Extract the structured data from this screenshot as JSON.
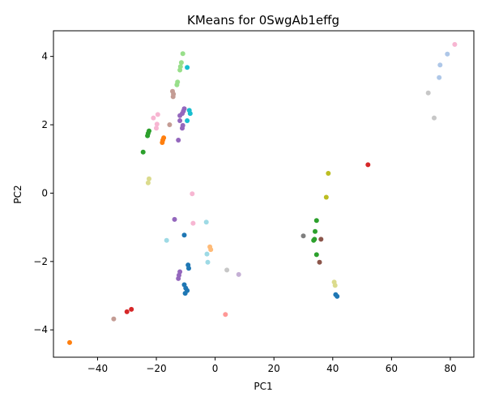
{
  "chart_data": {
    "type": "scatter",
    "title": "KMeans for 0SwgAb1effg",
    "xlabel": "PC1",
    "ylabel": "PC2",
    "xlim": [
      -55,
      88
    ],
    "ylim": [
      -4.8,
      4.75
    ],
    "xticks": [
      -40,
      -20,
      0,
      20,
      40,
      60,
      80
    ],
    "yticks": [
      -4,
      -2,
      0,
      2,
      4
    ],
    "xtick_labels": [
      "−40",
      "−20",
      "0",
      "20",
      "40",
      "60",
      "80"
    ],
    "ytick_labels": [
      "−4",
      "−2",
      "0",
      "2",
      "4"
    ],
    "grid": false,
    "legend": false,
    "points": [
      {
        "x": -11,
        "y": 4.08,
        "c": "#98df8a"
      },
      {
        "x": -11.5,
        "y": 3.82,
        "c": "#98df8a"
      },
      {
        "x": -11.8,
        "y": 3.7,
        "c": "#98df8a"
      },
      {
        "x": -12,
        "y": 3.6,
        "c": "#98df8a"
      },
      {
        "x": -9.5,
        "y": 3.68,
        "c": "#17becf"
      },
      {
        "x": -12.8,
        "y": 3.25,
        "c": "#98df8a"
      },
      {
        "x": -13,
        "y": 3.17,
        "c": "#98df8a"
      },
      {
        "x": -14.5,
        "y": 2.98,
        "c": "#c49c94"
      },
      {
        "x": -14.2,
        "y": 2.9,
        "c": "#c49c94"
      },
      {
        "x": -14.3,
        "y": 2.82,
        "c": "#c49c94"
      },
      {
        "x": -10.5,
        "y": 2.47,
        "c": "#9467bd"
      },
      {
        "x": -10.8,
        "y": 2.4,
        "c": "#9467bd"
      },
      {
        "x": -8.8,
        "y": 2.42,
        "c": "#17becf"
      },
      {
        "x": -8.5,
        "y": 2.33,
        "c": "#17becf"
      },
      {
        "x": -11.2,
        "y": 2.33,
        "c": "#9467bd"
      },
      {
        "x": -12,
        "y": 2.27,
        "c": "#9467bd"
      },
      {
        "x": -19.5,
        "y": 2.3,
        "c": "#f7b6d2"
      },
      {
        "x": -21,
        "y": 2.2,
        "c": "#f7b6d2"
      },
      {
        "x": -9.5,
        "y": 2.12,
        "c": "#17becf"
      },
      {
        "x": -12,
        "y": 2.12,
        "c": "#9467bd"
      },
      {
        "x": -19.8,
        "y": 2.02,
        "c": "#f7b6d2"
      },
      {
        "x": -15.5,
        "y": 2.0,
        "c": "#c49c94"
      },
      {
        "x": -11,
        "y": 1.98,
        "c": "#9467bd"
      },
      {
        "x": -11.2,
        "y": 1.9,
        "c": "#9467bd"
      },
      {
        "x": -20,
        "y": 1.9,
        "c": "#f7b6d2"
      },
      {
        "x": -22.5,
        "y": 1.82,
        "c": "#2ca02c"
      },
      {
        "x": -22.8,
        "y": 1.75,
        "c": "#2ca02c"
      },
      {
        "x": -23,
        "y": 1.68,
        "c": "#2ca02c"
      },
      {
        "x": -17.5,
        "y": 1.62,
        "c": "#ff7f0e"
      },
      {
        "x": -17.8,
        "y": 1.55,
        "c": "#ff7f0e"
      },
      {
        "x": -18,
        "y": 1.48,
        "c": "#ff7f0e"
      },
      {
        "x": -12.5,
        "y": 1.55,
        "c": "#9467bd"
      },
      {
        "x": -24.5,
        "y": 1.2,
        "c": "#2ca02c"
      },
      {
        "x": -22.5,
        "y": 0.42,
        "c": "#dbdb8d"
      },
      {
        "x": -22.8,
        "y": 0.3,
        "c": "#dbdb8d"
      },
      {
        "x": -7.8,
        "y": -0.02,
        "c": "#f7b6d2"
      },
      {
        "x": -13.8,
        "y": -0.77,
        "c": "#9467bd"
      },
      {
        "x": -7.5,
        "y": -0.88,
        "c": "#f7b6d2"
      },
      {
        "x": -3,
        "y": -0.85,
        "c": "#9edae5"
      },
      {
        "x": -16.5,
        "y": -1.38,
        "c": "#9edae5"
      },
      {
        "x": -10.5,
        "y": -1.23,
        "c": "#1f77b4"
      },
      {
        "x": -1.8,
        "y": -1.57,
        "c": "#ffbb78"
      },
      {
        "x": -1.5,
        "y": -1.65,
        "c": "#ffbb78"
      },
      {
        "x": -2.8,
        "y": -1.78,
        "c": "#9edae5"
      },
      {
        "x": -2.5,
        "y": -2.02,
        "c": "#9edae5"
      },
      {
        "x": -9.2,
        "y": -2.1,
        "c": "#1f77b4"
      },
      {
        "x": -9,
        "y": -2.2,
        "c": "#1f77b4"
      },
      {
        "x": 4,
        "y": -2.25,
        "c": "#c7c7c7"
      },
      {
        "x": -12,
        "y": -2.3,
        "c": "#9467bd"
      },
      {
        "x": -12.3,
        "y": -2.4,
        "c": "#9467bd"
      },
      {
        "x": -12.5,
        "y": -2.5,
        "c": "#9467bd"
      },
      {
        "x": 8,
        "y": -2.38,
        "c": "#c5b0d5"
      },
      {
        "x": -10.5,
        "y": -2.68,
        "c": "#1f77b4"
      },
      {
        "x": -10,
        "y": -2.78,
        "c": "#1f77b4"
      },
      {
        "x": -9.5,
        "y": -2.85,
        "c": "#1f77b4"
      },
      {
        "x": -10.2,
        "y": -2.93,
        "c": "#1f77b4"
      },
      {
        "x": 3.5,
        "y": -3.55,
        "c": "#ff9896"
      },
      {
        "x": -28.5,
        "y": -3.4,
        "c": "#d62728"
      },
      {
        "x": -30,
        "y": -3.47,
        "c": "#d62728"
      },
      {
        "x": -34.5,
        "y": -3.68,
        "c": "#c49c94"
      },
      {
        "x": -49.5,
        "y": -4.37,
        "c": "#ff7f0e"
      },
      {
        "x": 81.5,
        "y": 4.35,
        "c": "#f7b6d2"
      },
      {
        "x": 79,
        "y": 4.07,
        "c": "#aec7e8"
      },
      {
        "x": 76.5,
        "y": 3.75,
        "c": "#aec7e8"
      },
      {
        "x": 76.2,
        "y": 3.38,
        "c": "#aec7e8"
      },
      {
        "x": 72.5,
        "y": 2.93,
        "c": "#c7c7c7"
      },
      {
        "x": 74.5,
        "y": 2.2,
        "c": "#c7c7c7"
      },
      {
        "x": 52,
        "y": 0.83,
        "c": "#d62728"
      },
      {
        "x": 38.5,
        "y": 0.58,
        "c": "#bcbd22"
      },
      {
        "x": 37.8,
        "y": -0.12,
        "c": "#bcbd22"
      },
      {
        "x": 34.5,
        "y": -0.8,
        "c": "#2ca02c"
      },
      {
        "x": 34,
        "y": -1.12,
        "c": "#2ca02c"
      },
      {
        "x": 30,
        "y": -1.25,
        "c": "#7f7f7f"
      },
      {
        "x": 33.5,
        "y": -1.38,
        "c": "#2ca02c"
      },
      {
        "x": 33.8,
        "y": -1.35,
        "c": "#2ca02c"
      },
      {
        "x": 36,
        "y": -1.35,
        "c": "#8c564b"
      },
      {
        "x": 34.5,
        "y": -1.8,
        "c": "#2ca02c"
      },
      {
        "x": 35.5,
        "y": -2.02,
        "c": "#8c564b"
      },
      {
        "x": 40.5,
        "y": -2.6,
        "c": "#dbdb8d"
      },
      {
        "x": 40.8,
        "y": -2.7,
        "c": "#dbdb8d"
      },
      {
        "x": 41,
        "y": -2.97,
        "c": "#1f77b4"
      },
      {
        "x": 41.5,
        "y": -3.02,
        "c": "#1f77b4"
      }
    ]
  }
}
